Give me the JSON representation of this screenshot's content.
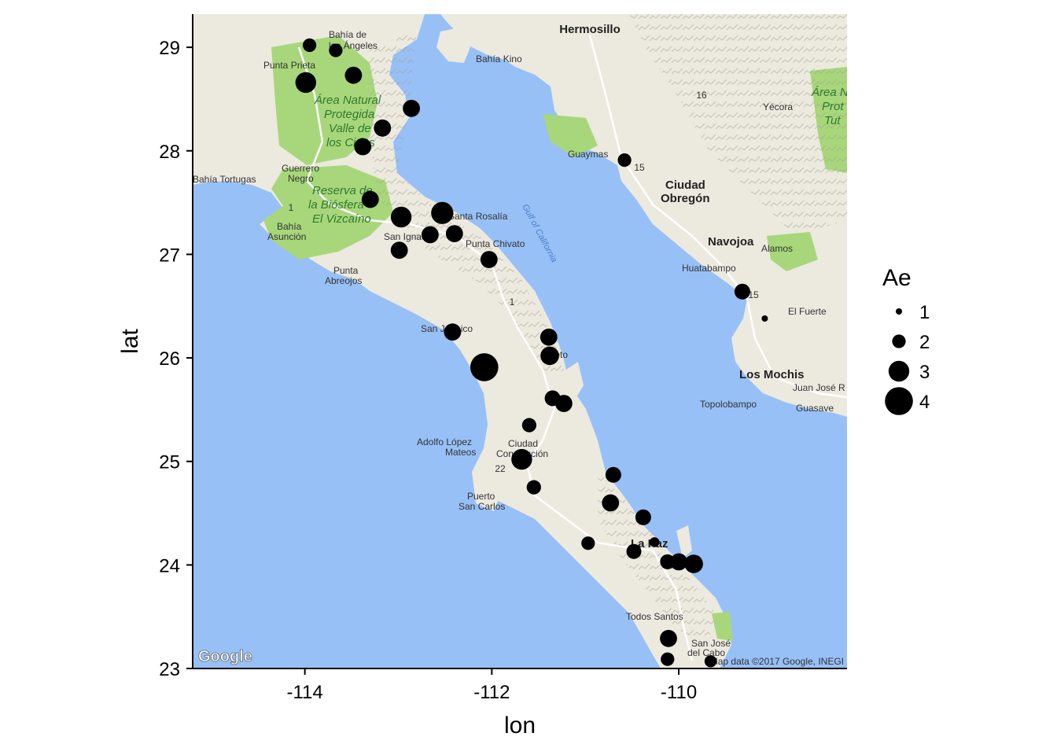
{
  "chart_data": {
    "type": "scatter",
    "title": "",
    "xlabel": "lon",
    "ylabel": "lat",
    "xlim": [
      -115.2,
      -108.2
    ],
    "ylim": [
      23.0,
      29.32
    ],
    "x_ticks": [
      -114,
      -112,
      -110
    ],
    "x_tick_labels": [
      "-114",
      "-112",
      "-110"
    ],
    "y_ticks": [
      23,
      24,
      25,
      26,
      27,
      28,
      29
    ],
    "y_tick_labels": [
      "23",
      "24",
      "25",
      "26",
      "27",
      "28",
      "29"
    ],
    "grid": false,
    "legend": {
      "title": "Ae",
      "placement": "right",
      "entries": [
        {
          "label": "1",
          "value": 1
        },
        {
          "label": "2",
          "value": 2
        },
        {
          "label": "3",
          "value": 3
        },
        {
          "label": "4",
          "value": 4
        }
      ]
    },
    "size_field": "Ae",
    "points": [
      {
        "lon": -113.95,
        "lat": 29.02,
        "Ae": 2
      },
      {
        "lon": -113.67,
        "lat": 28.97,
        "Ae": 2
      },
      {
        "lon": -113.48,
        "lat": 28.73,
        "Ae": 2.5
      },
      {
        "lon": -113.99,
        "lat": 28.66,
        "Ae": 3
      },
      {
        "lon": -112.86,
        "lat": 28.41,
        "Ae": 2.5
      },
      {
        "lon": -113.17,
        "lat": 28.22,
        "Ae": 2.5
      },
      {
        "lon": -113.38,
        "lat": 28.04,
        "Ae": 2.5
      },
      {
        "lon": -110.58,
        "lat": 27.91,
        "Ae": 2
      },
      {
        "lon": -113.3,
        "lat": 27.53,
        "Ae": 2.5
      },
      {
        "lon": -112.53,
        "lat": 27.4,
        "Ae": 3.2
      },
      {
        "lon": -112.97,
        "lat": 27.36,
        "Ae": 3
      },
      {
        "lon": -112.4,
        "lat": 27.2,
        "Ae": 2.5
      },
      {
        "lon": -112.66,
        "lat": 27.19,
        "Ae": 2.5
      },
      {
        "lon": -112.99,
        "lat": 27.04,
        "Ae": 2.5
      },
      {
        "lon": -112.03,
        "lat": 26.95,
        "Ae": 2.5
      },
      {
        "lon": -109.32,
        "lat": 26.64,
        "Ae": 2.3
      },
      {
        "lon": -109.08,
        "lat": 26.38,
        "Ae": 1
      },
      {
        "lon": -112.42,
        "lat": 26.25,
        "Ae": 2.5
      },
      {
        "lon": -111.39,
        "lat": 26.2,
        "Ae": 2.5
      },
      {
        "lon": -111.38,
        "lat": 26.02,
        "Ae": 2.7
      },
      {
        "lon": -112.08,
        "lat": 25.91,
        "Ae": 4
      },
      {
        "lon": -111.35,
        "lat": 25.61,
        "Ae": 2.3
      },
      {
        "lon": -111.23,
        "lat": 25.56,
        "Ae": 2.5
      },
      {
        "lon": -111.6,
        "lat": 25.35,
        "Ae": 2.1
      },
      {
        "lon": -111.68,
        "lat": 25.02,
        "Ae": 3
      },
      {
        "lon": -110.7,
        "lat": 24.87,
        "Ae": 2.3
      },
      {
        "lon": -111.55,
        "lat": 24.75,
        "Ae": 2.1
      },
      {
        "lon": -110.73,
        "lat": 24.6,
        "Ae": 2.5
      },
      {
        "lon": -110.38,
        "lat": 24.46,
        "Ae": 2.3
      },
      {
        "lon": -110.26,
        "lat": 24.22,
        "Ae": 1.5
      },
      {
        "lon": -110.97,
        "lat": 24.21,
        "Ae": 2
      },
      {
        "lon": -110.48,
        "lat": 24.13,
        "Ae": 2.2
      },
      {
        "lon": -110.12,
        "lat": 24.03,
        "Ae": 2.2
      },
      {
        "lon": -110.0,
        "lat": 24.03,
        "Ae": 2.5
      },
      {
        "lon": -109.84,
        "lat": 24.01,
        "Ae": 2.7
      },
      {
        "lon": -110.11,
        "lat": 23.29,
        "Ae": 2.5
      },
      {
        "lon": -110.12,
        "lat": 23.09,
        "Ae": 2
      },
      {
        "lon": -109.66,
        "lat": 23.07,
        "Ae": 1.8
      }
    ]
  },
  "map": {
    "colors": {
      "water": "#97c0f7",
      "land": "#ece9df",
      "park": "#a7d77a",
      "mountain": "#b9b29f",
      "marker": "#000000"
    },
    "labels": {
      "hermosillo": "Hermosillo",
      "bahia_de_los_angeles_1": "Bahía de",
      "bahia_de_los_angeles_2": "los Ángeles",
      "bahia_kino": "Bahía Kino",
      "punta_prieta": "Punta Prieta",
      "area_natural_1": "Área Natural",
      "area_natural_2": "Protegida",
      "area_natural_3": "Valle de",
      "area_natural_4": "los Cirios",
      "hwy16": "16",
      "yecora": "Yécora",
      "area_prot_1": "Área N",
      "area_prot_2": "Prot",
      "area_prot_3": "Tut",
      "guaymas": "Guaymas",
      "hwy15a": "15",
      "guerrero_negro_1": "Guerrero",
      "guerrero_negro_2": "Negro",
      "bahia_tortugas": "Bahía Tortugas",
      "reserva_1": "Reserva de",
      "reserva_2": "la Biósfera",
      "reserva_3": "El Vizcaíno",
      "ciudad_obregon_1": "Ciudad",
      "ciudad_obregon_2": "Obregón",
      "gulf": "Gulf of California",
      "hwy1a": "1",
      "santa_rosalia": "Santa Rosalía",
      "bahia_asuncion_1": "Bahía",
      "bahia_asuncion_2": "Asunción",
      "san_ignacio": "San Ignacio",
      "punta_chivato": "Punta Chivato",
      "navojoa": "Navojoa",
      "alamos": "Alamos",
      "huatabampo": "Huatabampo",
      "punta_abreojos_1": "Punta",
      "punta_abreojos_2": "Abreojos",
      "hwy1b": "1",
      "hwy15b": "15",
      "el_fuerte": "El Fuerte",
      "san_juanico": "San Juanico",
      "loreto": "Loreto",
      "los_mochis": "Los Mochis",
      "juan_jose": "Juan José R",
      "topolobampo": "Topolobampo",
      "guasave": "Guasave",
      "adolfo_1": "Adolfo López",
      "adolfo_2": "Mateos",
      "ciudad_const_1": "Ciudad",
      "ciudad_const_2": "Constitución",
      "hwy22": "22",
      "puerto_1": "Puerto",
      "puerto_2": "San Carlos",
      "la_paz": "La Paz",
      "todos_santos": "Todos Santos",
      "san_jose_1": "San José",
      "san_jose_2": "del Cabo",
      "google": "Google",
      "attribution": "Map data ©2017 Google, INEGI"
    }
  }
}
